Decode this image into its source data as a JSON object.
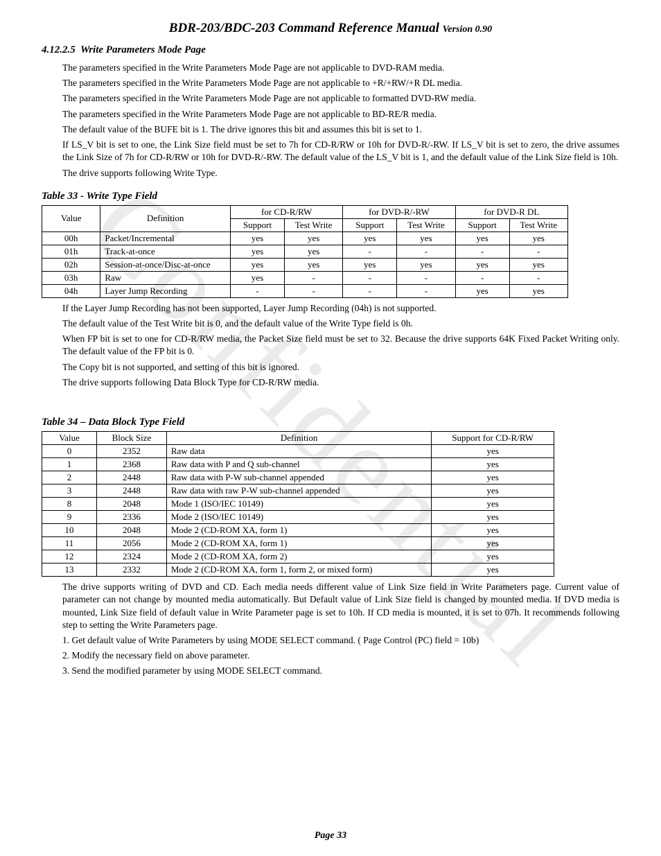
{
  "doc": {
    "title_main": "BDR-203/BDC-203 Command Reference Manual",
    "title_version": "Version 0.90",
    "watermark": "Confidential",
    "page_label": "Page  33"
  },
  "section": {
    "number": "4.12.2.5",
    "title": "Write Parameters Mode Page"
  },
  "paras_top": [
    "The parameters specified in the Write Parameters Mode Page are not applicable to DVD-RAM media.",
    "The parameters specified in the Write Parameters Mode Page are not applicable to +R/+RW/+R DL media.",
    "The parameters specified in the Write Parameters Mode Page are not applicable to formatted DVD-RW media.",
    "The parameters specified in the Write Parameters Mode Page are not applicable to BD-RE/R media.",
    "The default value of the BUFE bit is 1. The drive ignores this bit and assumes this bit is set to 1.",
    "If LS_V bit is set to one, the Link Size field must be set to 7h for CD-R/RW or 10h for DVD-R/-RW. If LS_V bit is set to zero, the drive assumes the Link Size of 7h for CD-R/RW or 10h for DVD-R/-RW. The default value of the LS_V bit is 1, and the default value of the Link Size field is 10h.",
    "The drive supports following Write Type."
  ],
  "table33": {
    "caption": "Table 33 - Write Type Field",
    "head": {
      "value": "Value",
      "definition": "Definition",
      "cd": "for CD-R/RW",
      "dvd": "for DVD-R/-RW",
      "dvddl": "for DVD-R DL",
      "support": "Support",
      "testwrite": "Test Write"
    },
    "rows": [
      {
        "v": "00h",
        "d": "Packet/Incremental",
        "c": [
          "yes",
          "yes",
          "yes",
          "yes",
          "yes",
          "yes"
        ]
      },
      {
        "v": "01h",
        "d": "Track-at-once",
        "c": [
          "yes",
          "yes",
          "-",
          "-",
          "-",
          "-"
        ]
      },
      {
        "v": "02h",
        "d": "Session-at-once/Disc-at-once",
        "c": [
          "yes",
          "yes",
          "yes",
          "yes",
          "yes",
          "yes"
        ]
      },
      {
        "v": "03h",
        "d": "Raw",
        "c": [
          "yes",
          "-",
          "-",
          "-",
          "-",
          "-"
        ]
      },
      {
        "v": "04h",
        "d": "Layer Jump Recording",
        "c": [
          "-",
          "-",
          "-",
          "-",
          "yes",
          "yes"
        ]
      }
    ]
  },
  "paras_mid": [
    "If the Layer Jump Recording has not been supported, Layer Jump Recording (04h) is not supported.",
    "The default value of the Test Write bit is 0, and the default value of the Write Type field is 0h.",
    "When FP bit is set to one for CD-R/RW media, the Packet Size field must be set to 32. Because the drive supports 64K Fixed Packet Writing only. The default value of the FP bit is 0.",
    "The Copy bit is not supported, and setting of this bit is ignored.",
    "The drive supports following Data Block Type for CD-R/RW media."
  ],
  "table34": {
    "caption": "Table 34 – Data Block Type Field",
    "head": {
      "value": "Value",
      "blocksize": "Block Size",
      "definition": "Definition",
      "support": "Support for CD-R/RW"
    },
    "rows": [
      {
        "v": "0",
        "b": "2352",
        "d": "Raw data",
        "s": "yes"
      },
      {
        "v": "1",
        "b": "2368",
        "d": "Raw data with P and Q sub-channel",
        "s": "yes"
      },
      {
        "v": "2",
        "b": "2448",
        "d": "Raw data with P-W sub-channel appended",
        "s": "yes"
      },
      {
        "v": "3",
        "b": "2448",
        "d": "Raw data with raw P-W sub-channel appended",
        "s": "yes"
      },
      {
        "v": "8",
        "b": "2048",
        "d": "Mode 1 (ISO/IEC 10149)",
        "s": "yes"
      },
      {
        "v": "9",
        "b": "2336",
        "d": "Mode 2 (ISO/IEC 10149)",
        "s": "yes"
      },
      {
        "v": "10",
        "b": "2048",
        "d": "Mode 2 (CD-ROM XA, form 1)",
        "s": "yes"
      },
      {
        "v": "11",
        "b": "2056",
        "d": "Mode 2 (CD-ROM XA, form 1)",
        "s": "yes"
      },
      {
        "v": "12",
        "b": "2324",
        "d": "Mode 2 (CD-ROM XA, form 2)",
        "s": "yes"
      },
      {
        "v": "13",
        "b": "2332",
        "d": "Mode 2 (CD-ROM XA, form 1, form 2, or mixed form)",
        "s": "yes"
      }
    ]
  },
  "paras_bottom": [
    "The drive supports writing of DVD and CD. Each media needs different value of Link Size field in  Write Parameters page. Current value of parameter can not change by mounted media automatically. But Default value of Link Size field is changed by mounted media. If DVD media is mounted, Link Size field of default value in Write Parameter page is set to 10h. If CD media is mounted, it is set to 07h. It recommends following step to setting the Write Parameters page.",
    "1. Get default value of Write Parameters by using MODE SELECT command. ( Page Control (PC) field = 10b)",
    "2. Modify the necessary field on above parameter.",
    "3. Send the modified parameter by using MODE SELECT command."
  ]
}
